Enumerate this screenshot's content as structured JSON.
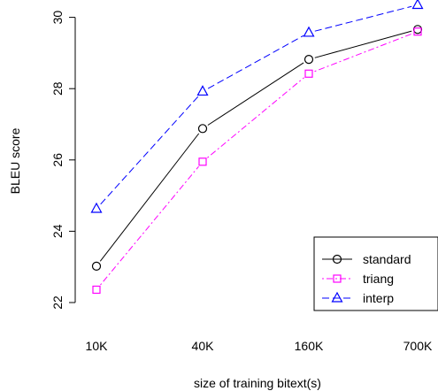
{
  "chart_data": {
    "type": "line",
    "title": "",
    "xlabel": "size of training bitext(s)",
    "ylabel": "BLEU score",
    "categories": [
      "10K",
      "40K",
      "160K",
      "700K"
    ],
    "ylim": [
      21.8,
      30.4
    ],
    "yticks": [
      22,
      24,
      26,
      28,
      30
    ],
    "grid": false,
    "legend_position": "bottom-right",
    "series": [
      {
        "name": "standard",
        "values": [
          23.02,
          26.88,
          28.82,
          29.66
        ],
        "color": "#000000",
        "marker": "circle",
        "dash": "solid"
      },
      {
        "name": "triang",
        "values": [
          22.36,
          25.95,
          28.42,
          29.6
        ],
        "color": "#ff00ff",
        "marker": "square",
        "dash": "dotdash"
      },
      {
        "name": "interp",
        "values": [
          24.63,
          27.92,
          29.57,
          30.35
        ],
        "color": "#0000ff",
        "marker": "triangle",
        "dash": "dashed"
      }
    ]
  }
}
